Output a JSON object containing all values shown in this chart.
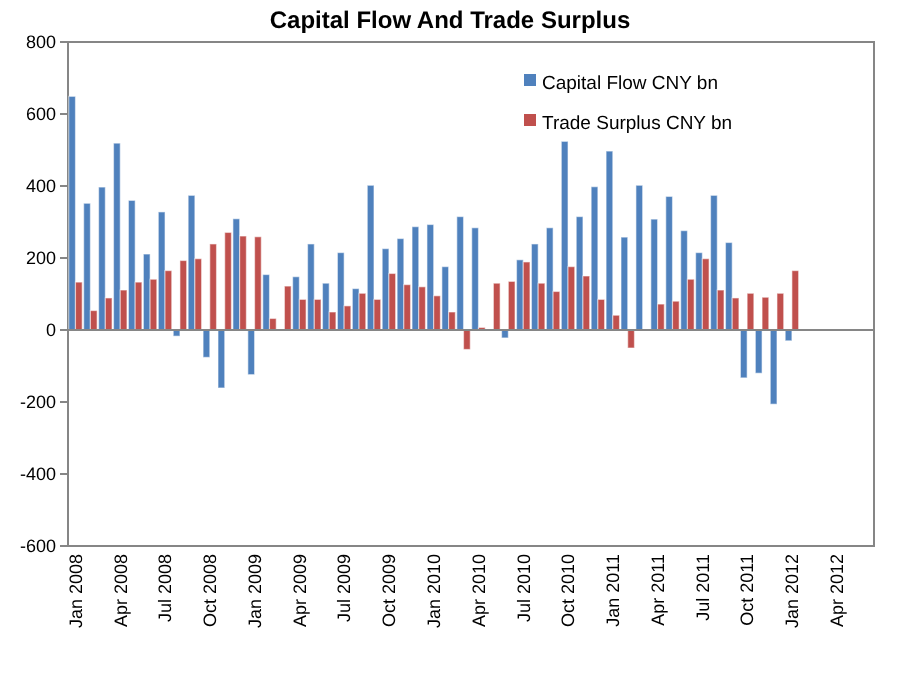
{
  "chart_data": {
    "type": "bar",
    "title": "Capital Flow And Trade Surplus",
    "categories": [
      "Jan 2008",
      null,
      null,
      "Apr 2008",
      null,
      null,
      "Jul 2008",
      null,
      null,
      "Oct 2008",
      null,
      null,
      "Jan 2009",
      null,
      null,
      "Apr 2009",
      null,
      null,
      "Jul 2009",
      null,
      null,
      "Oct 2009",
      null,
      null,
      "Jan 2010",
      null,
      null,
      "Apr 2010",
      null,
      null,
      "Jul 2010",
      null,
      null,
      "Oct 2010",
      null,
      null,
      "Jan 2011",
      null,
      null,
      "Apr 2011",
      null,
      null,
      "Jul 2011",
      null,
      null,
      "Oct 2011",
      null,
      null,
      "Jan 2012",
      null,
      null,
      "Apr 2012",
      null,
      null
    ],
    "series": [
      {
        "name": "Capital Flow CNY bn",
        "color": "#4f81bd",
        "values": [
          649,
          352,
          397,
          519,
          360,
          211,
          328,
          -17,
          374,
          -76,
          -161,
          309,
          -124,
          154,
          null,
          148,
          239,
          130,
          215,
          115,
          402,
          226,
          254,
          287,
          293,
          176,
          315,
          284,
          null,
          -22,
          195,
          239,
          284,
          524,
          315,
          398,
          497,
          258,
          402,
          308,
          371,
          276,
          215,
          374,
          243,
          -133,
          -120,
          -206,
          -30,
          null,
          null,
          null,
          null,
          null
        ]
      },
      {
        "name": "Trade Surplus CNY bn",
        "color": "#c0504d",
        "values": [
          133,
          54,
          89,
          111,
          133,
          141,
          165,
          193,
          198,
          239,
          271,
          261,
          259,
          32,
          122,
          85,
          85,
          50,
          67,
          102,
          85,
          157,
          126,
          120,
          95,
          50,
          -54,
          7,
          130,
          135,
          189,
          130,
          107,
          176,
          150,
          85,
          41,
          -50,
          0,
          72,
          80,
          141,
          198,
          111,
          89,
          102,
          91,
          102,
          165,
          null,
          null,
          null,
          null,
          null
        ]
      }
    ],
    "ylim": [
      -600,
      800
    ],
    "yticks": [
      -600,
      -400,
      -200,
      0,
      200,
      400,
      600,
      800
    ],
    "legend": "top right"
  }
}
